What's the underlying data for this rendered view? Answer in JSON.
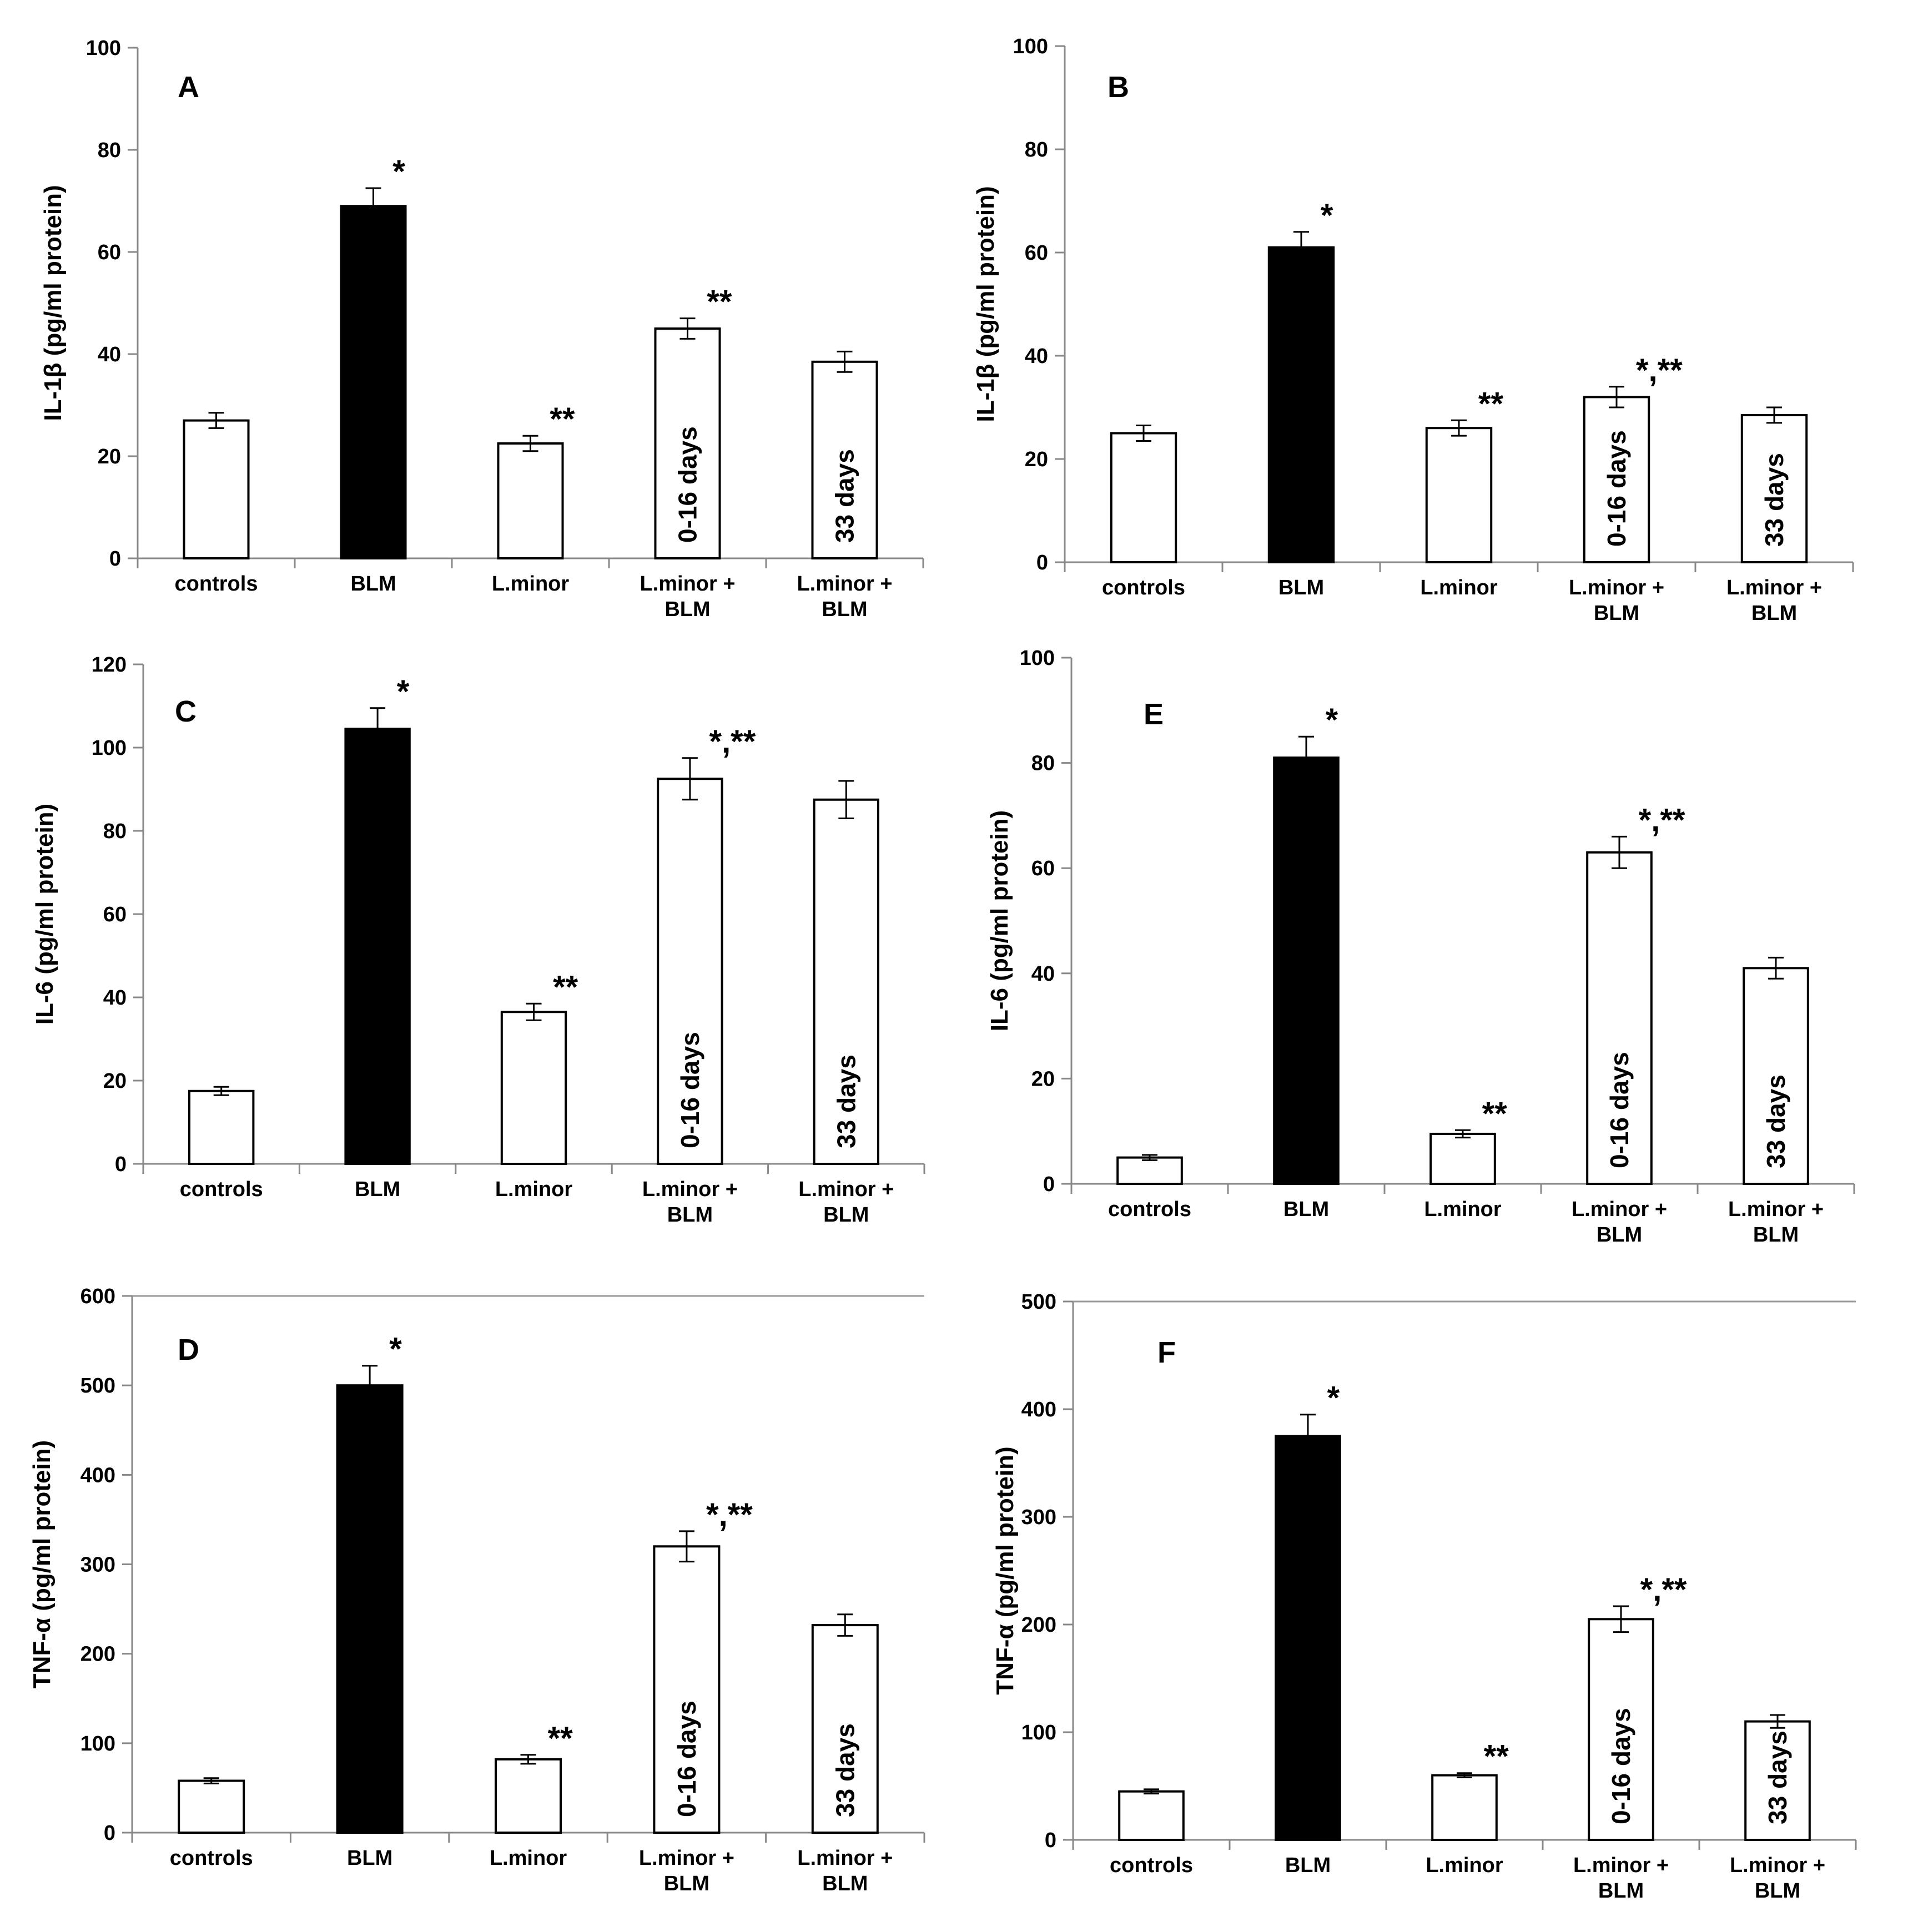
{
  "figure": {
    "charts": [
      {
        "panel": "A",
        "type": "bar",
        "ylabel": "IL-1β (pg/ml protein)",
        "ylim": [
          0,
          100
        ],
        "yticks": [
          "0",
          "20",
          "40",
          "60",
          "80",
          "100"
        ],
        "categories": [
          [
            "controls"
          ],
          [
            "BLM"
          ],
          [
            "L.minor"
          ],
          [
            "L.minor +",
            "BLM"
          ],
          [
            "L.minor +",
            "BLM"
          ]
        ],
        "values": [
          27,
          69,
          22.5,
          45,
          38.5
        ],
        "errors": [
          1.5,
          3.5,
          1.5,
          2,
          2
        ],
        "fills": [
          "#ffffff",
          "#000000",
          "#ffffff",
          "#ffffff",
          "#ffffff"
        ],
        "bar_labels": [
          "",
          "",
          "",
          "0-16 days",
          "33 days"
        ],
        "annotations": [
          "",
          "*",
          "**",
          "**",
          ""
        ]
      },
      {
        "panel": "B",
        "type": "bar",
        "ylabel": "IL-1β (pg/ml protein)",
        "ylim": [
          0,
          100
        ],
        "yticks": [
          "0",
          "20",
          "40",
          "60",
          "80",
          "100"
        ],
        "categories": [
          [
            "controls"
          ],
          [
            "BLM"
          ],
          [
            "L.minor"
          ],
          [
            "L.minor +",
            "BLM"
          ],
          [
            "L.minor +",
            "BLM"
          ]
        ],
        "values": [
          25,
          61,
          26,
          32,
          28.5
        ],
        "errors": [
          1.5,
          3,
          1.5,
          2,
          1.5
        ],
        "fills": [
          "#ffffff",
          "#000000",
          "#ffffff",
          "#ffffff",
          "#ffffff"
        ],
        "bar_labels": [
          "",
          "",
          "",
          "0-16 days",
          "33 days"
        ],
        "annotations": [
          "",
          "*",
          "**",
          "*,**",
          ""
        ]
      },
      {
        "panel": "C",
        "type": "bar",
        "ylabel": "IL-6 (pg/ml protein)",
        "ylim": [
          0,
          120
        ],
        "yticks": [
          "0",
          "20",
          "40",
          "60",
          "80",
          "100",
          "120"
        ],
        "categories": [
          [
            "controls"
          ],
          [
            "BLM"
          ],
          [
            "L.minor"
          ],
          [
            "L.minor +",
            "BLM"
          ],
          [
            "L.minor +",
            "BLM"
          ]
        ],
        "values": [
          17.5,
          104.5,
          36.5,
          92.5,
          87.5
        ],
        "errors": [
          1,
          5,
          2,
          5,
          4.5
        ],
        "fills": [
          "#ffffff",
          "#000000",
          "#ffffff",
          "#ffffff",
          "#ffffff"
        ],
        "bar_labels": [
          "",
          "",
          "",
          "0-16 days",
          "33 days"
        ],
        "annotations": [
          "",
          "*",
          "**",
          "*,**",
          ""
        ]
      },
      {
        "panel": "E",
        "type": "bar",
        "ylabel": "IL-6 (pg/ml protein)",
        "ylim": [
          0,
          100
        ],
        "yticks": [
          "0",
          "20",
          "40",
          "60",
          "80",
          "100"
        ],
        "categories": [
          [
            "controls"
          ],
          [
            "BLM"
          ],
          [
            "L.minor"
          ],
          [
            "L.minor +",
            "BLM"
          ],
          [
            "L.minor +",
            "BLM"
          ]
        ],
        "values": [
          5,
          81,
          9.5,
          63,
          41
        ],
        "errors": [
          0.5,
          4,
          0.7,
          3,
          2
        ],
        "fills": [
          "#ffffff",
          "#000000",
          "#ffffff",
          "#ffffff",
          "#ffffff"
        ],
        "bar_labels": [
          "",
          "",
          "",
          "0-16 days",
          "33 days"
        ],
        "annotations": [
          "",
          "*",
          "**",
          "*,**",
          ""
        ]
      },
      {
        "panel": "D",
        "type": "bar",
        "ylabel": "TNF-α (pg/ml protein)",
        "ylim": [
          0,
          600
        ],
        "yticks": [
          "0",
          "100",
          "200",
          "300",
          "400",
          "500",
          "600"
        ],
        "categories": [
          [
            "controls"
          ],
          [
            "BLM"
          ],
          [
            "L.minor"
          ],
          [
            "L.minor +",
            "BLM"
          ],
          [
            "L.minor +",
            "BLM"
          ]
        ],
        "values": [
          58,
          500,
          82,
          320,
          232
        ],
        "errors": [
          3,
          22,
          5,
          17,
          12
        ],
        "fills": [
          "#ffffff",
          "#000000",
          "#ffffff",
          "#ffffff",
          "#ffffff"
        ],
        "bar_labels": [
          "",
          "",
          "",
          "0-16 days",
          "33 days"
        ],
        "annotations": [
          "",
          "*",
          "**",
          "*,**",
          ""
        ]
      },
      {
        "panel": "F",
        "type": "bar",
        "ylabel": "TNF-α (pg/ml protein)",
        "ylim": [
          0,
          500
        ],
        "yticks": [
          "0",
          "100",
          "200",
          "300",
          "400",
          "500"
        ],
        "categories": [
          [
            "controls"
          ],
          [
            "BLM"
          ],
          [
            "L.minor"
          ],
          [
            "L.minor +",
            "BLM"
          ],
          [
            "L.minor +",
            "BLM"
          ]
        ],
        "values": [
          45,
          375,
          60,
          205,
          110
        ],
        "errors": [
          2,
          20,
          2,
          12,
          6
        ],
        "fills": [
          "#ffffff",
          "#000000",
          "#ffffff",
          "#ffffff",
          "#ffffff"
        ],
        "bar_labels": [
          "",
          "",
          "",
          "0-16 days",
          "33 days"
        ],
        "annotations": [
          "",
          "*",
          "**",
          "*,**",
          ""
        ]
      }
    ]
  }
}
